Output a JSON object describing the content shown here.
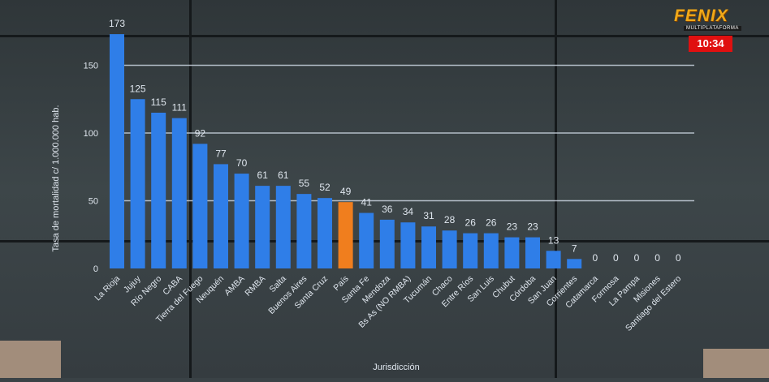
{
  "broadcast": {
    "logo_text": "FENIX",
    "logo_subtitle": "MULTIPLATAFORMA",
    "clock": "10:34"
  },
  "colors": {
    "bar": "#2f7ee8",
    "highlight": "#f07e1e",
    "gridline": "#c9d3df",
    "label": "#dfe6ee"
  },
  "chart_data": {
    "type": "bar",
    "title": "",
    "xlabel": "Jurisdicción",
    "ylabel": "Tasa de mortalidad c/ 1.000.000 hab.",
    "ylim": [
      0,
      200
    ],
    "yticks": [
      0,
      50,
      100,
      150
    ],
    "grid": true,
    "highlight_category": "País",
    "categories": [
      "La Rioja",
      "Jujuy",
      "Río Negro",
      "CABA",
      "Tierra del Fuego",
      "Neuquén",
      "AMBA",
      "RMBA",
      "Salta",
      "Buenos Aires",
      "Santa Cruz",
      "País",
      "Santa Fe",
      "Mendoza",
      "Bs As (NO RMBA)",
      "Tucumán",
      "Chaco",
      "Entre Ríos",
      "San Luis",
      "Chubut",
      "Córdoba",
      "San Juan",
      "Corrientes",
      "Catamarca",
      "Formosa",
      "La Pampa",
      "Misiones",
      "Santiago del Estero"
    ],
    "values": [
      173,
      125,
      115,
      111,
      92,
      77,
      70,
      61,
      61,
      55,
      52,
      49,
      41,
      36,
      34,
      31,
      28,
      26,
      26,
      23,
      23,
      13,
      7,
      0,
      0,
      0,
      0,
      0
    ]
  }
}
